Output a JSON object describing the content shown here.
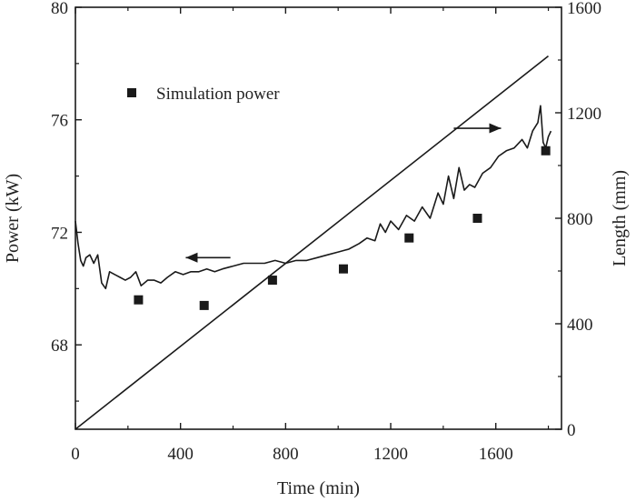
{
  "chart_data": {
    "type": "scatter",
    "xlabel": "Time (min)",
    "ylabel_left": "Power (kW)",
    "ylabel_right": "Length (mm)",
    "xlim": [
      0,
      1850
    ],
    "ylim_left": [
      65,
      80
    ],
    "ylim_right": [
      0,
      1600
    ],
    "x_ticks": [
      "0",
      "400",
      "800",
      "1200",
      "1600"
    ],
    "x_tick_values": [
      0,
      400,
      800,
      1200,
      1600
    ],
    "y_left_ticks": [
      "68",
      "72",
      "76",
      "80"
    ],
    "y_left_tick_values": [
      68,
      72,
      76,
      80
    ],
    "y_right_ticks": [
      "0",
      "400",
      "800",
      "1200",
      "1600"
    ],
    "y_right_tick_values": [
      0,
      400,
      800,
      1200,
      1600
    ],
    "grid": false,
    "legend": {
      "position": "top-left",
      "entries": [
        "Simulation power"
      ]
    },
    "series": [
      {
        "kind": "line",
        "axis": "left",
        "color": "#1a1a1a",
        "x": [
          0,
          10,
          20,
          30,
          40,
          55,
          70,
          85,
          100,
          115,
          130,
          150,
          170,
          190,
          210,
          230,
          250,
          275,
          300,
          325,
          350,
          380,
          410,
          440,
          470,
          500,
          530,
          560,
          600,
          640,
          680,
          720,
          760,
          800,
          840,
          880,
          920,
          960,
          1000,
          1040,
          1080,
          1110,
          1140,
          1160,
          1180,
          1200,
          1230,
          1260,
          1290,
          1320,
          1350,
          1380,
          1400,
          1420,
          1440,
          1460,
          1480,
          1500,
          1520,
          1550,
          1580,
          1610,
          1640,
          1670,
          1700,
          1720,
          1740,
          1760,
          1770,
          1780,
          1790,
          1800,
          1810
        ],
        "y": [
          72.4,
          71.6,
          71.0,
          70.8,
          71.1,
          71.2,
          70.9,
          71.2,
          70.2,
          70.0,
          70.6,
          70.5,
          70.4,
          70.3,
          70.4,
          70.6,
          70.1,
          70.3,
          70.3,
          70.2,
          70.4,
          70.6,
          70.5,
          70.6,
          70.6,
          70.7,
          70.6,
          70.7,
          70.8,
          70.9,
          70.9,
          70.9,
          71.0,
          70.9,
          71.0,
          71.0,
          71.1,
          71.2,
          71.3,
          71.4,
          71.6,
          71.8,
          71.7,
          72.3,
          72.0,
          72.4,
          72.1,
          72.6,
          72.4,
          72.9,
          72.5,
          73.4,
          73.0,
          74.0,
          73.2,
          74.3,
          73.5,
          73.7,
          73.6,
          74.1,
          74.3,
          74.7,
          74.9,
          75.0,
          75.3,
          75.0,
          75.6,
          75.9,
          76.5,
          75.2,
          75.0,
          75.4,
          75.6
        ]
      },
      {
        "kind": "line",
        "axis": "right",
        "color": "#1a1a1a",
        "x": [
          0,
          1800
        ],
        "y": [
          0,
          1415
        ]
      },
      {
        "kind": "scatter",
        "axis": "left",
        "name": "Simulation power",
        "marker": "square",
        "color": "#1a1a1a",
        "x": [
          240,
          490,
          750,
          1020,
          1270,
          1530,
          1790
        ],
        "y": [
          69.6,
          69.4,
          70.3,
          70.7,
          71.8,
          72.5,
          74.9
        ]
      }
    ],
    "annotations": [
      {
        "kind": "arrow",
        "direction": "left",
        "axis": "left",
        "x_from": 590,
        "x_to": 420,
        "y": 71.1
      },
      {
        "kind": "arrow",
        "direction": "right",
        "axis": "left",
        "x_from": 1440,
        "x_to": 1620,
        "y": 75.7
      }
    ]
  }
}
